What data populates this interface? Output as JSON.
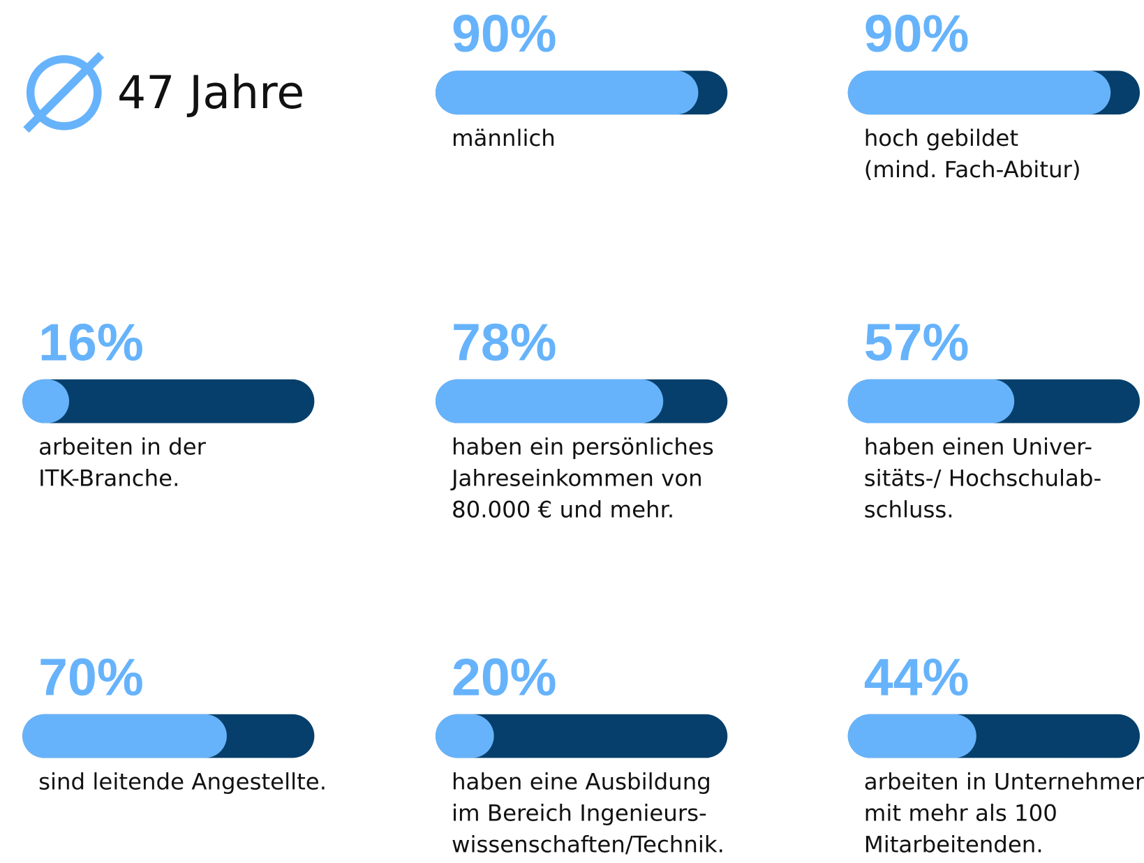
{
  "chart_data": {
    "type": "progress",
    "average_age": "47 Jahre",
    "max": 100,
    "colors": {
      "fill": "#66b3fb",
      "track": "#063f6b"
    },
    "stats": [
      {
        "value": 90,
        "value_label": "90%",
        "description": [
          "männlich"
        ]
      },
      {
        "value": 90,
        "value_label": "90%",
        "description": [
          "hoch gebildet",
          "(mind. Fach-Abitur)"
        ]
      },
      {
        "value": 16,
        "value_label": "16%",
        "description": [
          "arbeiten in der",
          "ITK-Branche."
        ]
      },
      {
        "value": 78,
        "value_label": "78%",
        "description": [
          "haben ein persönliches",
          "Jahreseinkommen von",
          "80.000 € und mehr."
        ]
      },
      {
        "value": 57,
        "value_label": "57%",
        "description": [
          "haben einen Univer-",
          "sitäts-/ Hochschulab-",
          "schluss."
        ]
      },
      {
        "value": 70,
        "value_label": "70%",
        "description": [
          "sind leitende Angestellte."
        ]
      },
      {
        "value": 20,
        "value_label": "20%",
        "description": [
          "haben eine Ausbildung",
          "im Bereich Ingenieurs-",
          "wissenschaften/Technik."
        ]
      },
      {
        "value": 44,
        "value_label": "44%",
        "description": [
          "arbeiten in Unternehmen",
          "mit mehr als 100",
          "Mitarbeitenden."
        ]
      }
    ]
  }
}
